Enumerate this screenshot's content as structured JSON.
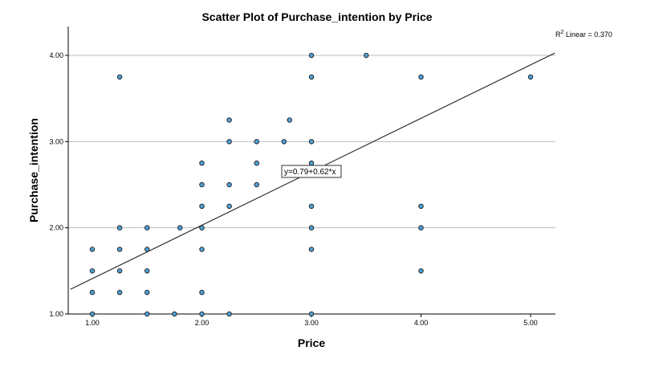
{
  "chart_data": {
    "type": "scatter",
    "title": "Scatter Plot of Purchase_intention by Price",
    "xlabel": "Price",
    "ylabel": "Purchase_intention",
    "xlim": [
      0.8,
      5.22
    ],
    "ylim": [
      1.0,
      4.3
    ],
    "x_ticks": [
      1.0,
      2.0,
      3.0,
      4.0,
      5.0
    ],
    "y_ticks": [
      1.0,
      2.0,
      3.0,
      4.0
    ],
    "x_tick_labels": [
      "1.00",
      "2.00",
      "3.00",
      "4.00",
      "5.00"
    ],
    "y_tick_labels": [
      "1.00",
      "2.00",
      "3.00",
      "4.00"
    ],
    "grid": "horizontal",
    "fit_line": {
      "intercept": 0.79,
      "slope": 0.62,
      "label": "y=0.79+0.62*x"
    },
    "r_squared": {
      "prefix": "R",
      "superscript": "2",
      "text": " Linear = 0.370"
    },
    "point_color": "#4e9fd6",
    "points": [
      [
        1.0,
        1.0
      ],
      [
        1.0,
        1.25
      ],
      [
        1.0,
        1.5
      ],
      [
        1.0,
        1.75
      ],
      [
        1.25,
        1.25
      ],
      [
        1.25,
        1.5
      ],
      [
        1.25,
        1.75
      ],
      [
        1.25,
        2.0
      ],
      [
        1.25,
        3.75
      ],
      [
        1.5,
        1.0
      ],
      [
        1.5,
        1.25
      ],
      [
        1.5,
        1.5
      ],
      [
        1.5,
        1.75
      ],
      [
        1.5,
        2.0
      ],
      [
        1.75,
        1.0
      ],
      [
        1.8,
        2.0
      ],
      [
        2.0,
        1.0
      ],
      [
        2.0,
        1.25
      ],
      [
        2.0,
        1.75
      ],
      [
        2.0,
        2.0
      ],
      [
        2.0,
        2.25
      ],
      [
        2.0,
        2.5
      ],
      [
        2.0,
        2.75
      ],
      [
        2.25,
        1.0
      ],
      [
        2.25,
        2.25
      ],
      [
        2.25,
        2.5
      ],
      [
        2.25,
        3.0
      ],
      [
        2.25,
        3.25
      ],
      [
        2.5,
        2.5
      ],
      [
        2.5,
        2.75
      ],
      [
        2.5,
        3.0
      ],
      [
        2.75,
        3.0
      ],
      [
        2.8,
        3.25
      ],
      [
        3.0,
        1.0
      ],
      [
        3.0,
        1.75
      ],
      [
        3.0,
        2.0
      ],
      [
        3.0,
        2.25
      ],
      [
        3.0,
        2.75
      ],
      [
        3.0,
        3.0
      ],
      [
        3.0,
        3.75
      ],
      [
        3.0,
        4.0
      ],
      [
        3.5,
        4.0
      ],
      [
        4.0,
        1.5
      ],
      [
        4.0,
        2.0
      ],
      [
        4.0,
        2.25
      ],
      [
        4.0,
        3.75
      ],
      [
        5.0,
        3.75
      ]
    ]
  }
}
